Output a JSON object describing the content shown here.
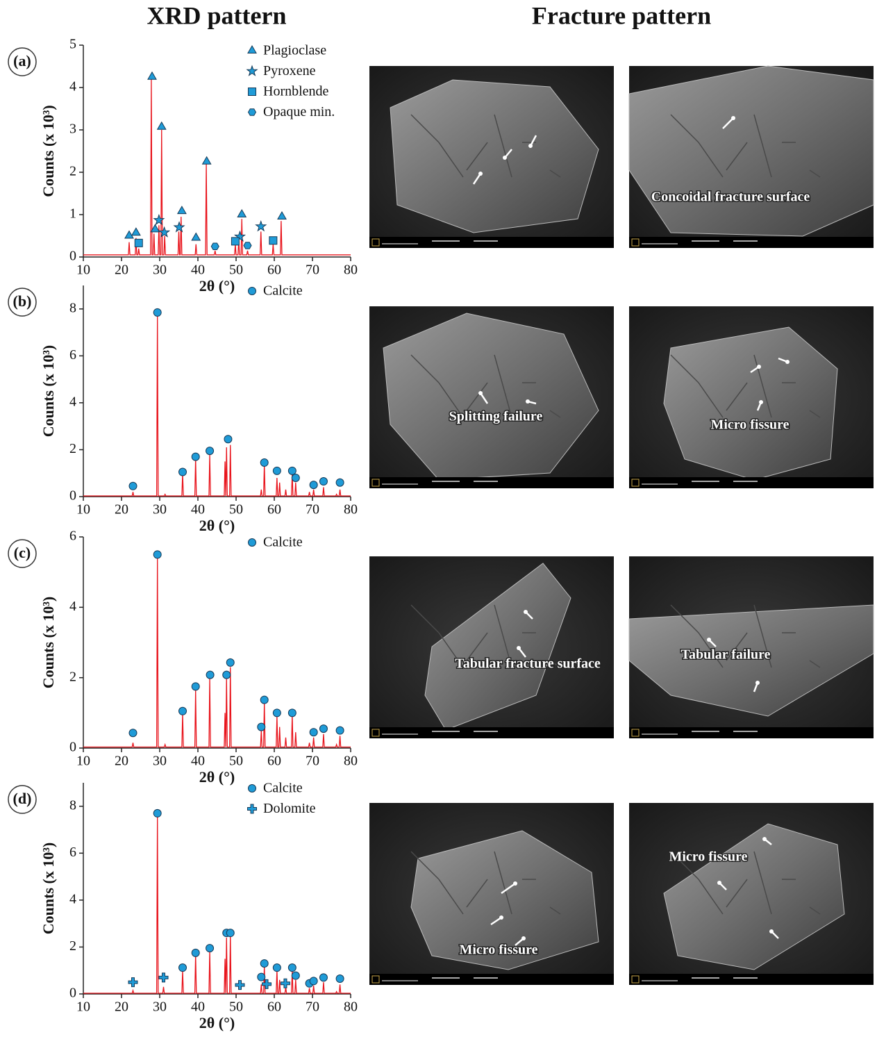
{
  "headers": [
    "XRD pattern",
    "Fracture pattern"
  ],
  "fracture_annotations": [
    "Concoidal fracture surface",
    "Splitting failure",
    "Micro fissure",
    "Tabular fracture surface",
    "Tabular failure",
    "Micro fissure",
    "Micro fissure"
  ],
  "chart_data": [
    {
      "type": "line",
      "panel_label": "(a)",
      "ylabel": "Counts (x 10³)",
      "xlabel": "2θ (°)",
      "color": "#e8141c",
      "xlim": [
        10,
        80
      ],
      "xticks": [
        10,
        20,
        30,
        40,
        50,
        60,
        70,
        80
      ],
      "ylim": [
        0,
        5
      ],
      "yticks": [
        0,
        1,
        2,
        3,
        4,
        5
      ],
      "legend": "upper right",
      "x": [
        10,
        21.8,
        22,
        22.2,
        23.6,
        23.8,
        24,
        24.3,
        24.5,
        24.7,
        27.6,
        27.8,
        28,
        28.3,
        28.5,
        28.7,
        29.6,
        29.8,
        30,
        30.3,
        30.5,
        30.7,
        31.1,
        31.3,
        31.5,
        34.8,
        35,
        35.2,
        35.4,
        35.6,
        35.8,
        39.3,
        39.5,
        39.7,
        42,
        42.2,
        42.4,
        44.3,
        44.5,
        44.7,
        49.6,
        49.8,
        50,
        50.5,
        50.7,
        50.9,
        51.3,
        51.5,
        51.7,
        52.8,
        53,
        53.2,
        56.3,
        56.5,
        56.7,
        59.5,
        59.7,
        59.9,
        61.6,
        61.8,
        62,
        80
      ],
      "values": [
        0.05,
        0.05,
        0.35,
        0.05,
        0.05,
        0.45,
        0.05,
        0.05,
        0.2,
        0.05,
        0.05,
        4.2,
        0.05,
        0.05,
        0.55,
        0.05,
        0.05,
        0.75,
        0.05,
        0.05,
        3.0,
        0.05,
        0.05,
        0.5,
        0.05,
        0.05,
        0.6,
        0.05,
        0.05,
        0.95,
        0.05,
        0.05,
        0.3,
        0.05,
        0.05,
        2.2,
        0.05,
        0.05,
        0.15,
        0.05,
        0.05,
        0.3,
        0.05,
        0.05,
        0.4,
        0.05,
        0.05,
        0.9,
        0.05,
        0.05,
        0.15,
        0.05,
        0.05,
        0.6,
        0.05,
        0.05,
        0.3,
        0.05,
        0.05,
        0.85,
        0.05,
        0.05
      ],
      "series": [
        {
          "name": "Plagioclase",
          "marker": "triangle",
          "color": "#1f9bd7",
          "x": [
            22,
            23.8,
            28,
            28.8,
            30.5,
            35.8,
            39.5,
            42.3,
            51.5,
            62
          ],
          "values": [
            0.5,
            0.57,
            4.25,
            0.65,
            3.07,
            1.08,
            0.45,
            2.25,
            1.0,
            0.95
          ]
        },
        {
          "name": "Pyroxene",
          "marker": "star",
          "color": "#1f9bd7",
          "x": [
            29.8,
            31.2,
            35.1,
            51,
            56.5
          ],
          "values": [
            0.87,
            0.58,
            0.7,
            0.48,
            0.72
          ]
        },
        {
          "name": "Hornblende",
          "marker": "square",
          "color": "#1f9bd7",
          "x": [
            24.5,
            49.8,
            59.7
          ],
          "values": [
            0.33,
            0.37,
            0.39
          ]
        },
        {
          "name": "Opaque min.",
          "marker": "hexagon",
          "color": "#1f9bd7",
          "x": [
            44.5,
            53
          ],
          "values": [
            0.25,
            0.27
          ]
        }
      ]
    },
    {
      "type": "line",
      "panel_label": "(b)",
      "ylabel": "Counts (x 10³)",
      "xlabel": "2θ (°)",
      "color": "#e8141c",
      "xlim": [
        10,
        80
      ],
      "xticks": [
        10,
        20,
        30,
        40,
        50,
        60,
        70,
        80
      ],
      "ylim": [
        0,
        9
      ],
      "yticks": [
        0,
        2,
        4,
        6,
        8
      ],
      "legend": "upper right",
      "x": [
        10,
        22.8,
        23,
        23.2,
        29.2,
        29.4,
        29.6,
        31.2,
        31.4,
        31.6,
        35.8,
        36,
        36.2,
        39.2,
        39.4,
        39.6,
        42.9,
        43.1,
        43.3,
        46.9,
        47.1,
        47.3,
        47.3,
        47.5,
        47.7,
        48.3,
        48.5,
        48.7,
        56.4,
        56.6,
        56.8,
        57.2,
        57.4,
        57.6,
        60.5,
        60.7,
        60.9,
        61.2,
        61.4,
        61.6,
        62.8,
        63,
        63.2,
        64.5,
        64.7,
        64.9,
        65.4,
        65.6,
        65.8,
        69,
        69.2,
        69.4,
        70.1,
        70.3,
        70.5,
        72.7,
        72.9,
        73.1,
        76.1,
        76.3,
        76.5,
        77,
        77.2,
        77.4,
        80
      ],
      "values": [
        0.03,
        0.03,
        0.2,
        0.03,
        0.03,
        7.7,
        0.03,
        0.03,
        0.1,
        0.03,
        0.03,
        1.0,
        0.03,
        0.03,
        1.65,
        0.03,
        0.03,
        1.8,
        0.03,
        0.03,
        1.5,
        0.03,
        0.03,
        2.1,
        0.03,
        0.03,
        2.2,
        0.03,
        0.03,
        0.3,
        0.03,
        0.03,
        1.4,
        0.03,
        0.03,
        0.8,
        0.03,
        0.03,
        0.6,
        0.03,
        0.03,
        0.3,
        0.03,
        0.03,
        1.0,
        0.03,
        0.03,
        0.6,
        0.03,
        0.03,
        0.2,
        0.03,
        0.03,
        0.3,
        0.03,
        0.03,
        0.4,
        0.03,
        0.03,
        0.1,
        0.03,
        0.03,
        0.3,
        0.03,
        0.03
      ],
      "series": [
        {
          "name": "Calcite",
          "marker": "circle",
          "color": "#1f9bd7",
          "x": [
            23,
            29.4,
            36,
            39.4,
            43.1,
            47.9,
            57.4,
            60.7,
            64.7,
            65.6,
            70.3,
            72.9,
            77.2
          ],
          "values": [
            0.45,
            7.85,
            1.05,
            1.7,
            1.95,
            2.45,
            1.45,
            1.1,
            1.1,
            0.8,
            0.5,
            0.65,
            0.6
          ]
        }
      ]
    },
    {
      "type": "line",
      "panel_label": "(c)",
      "ylabel": "Counts (x 10³)",
      "xlabel": "2θ (°)",
      "color": "#e8141c",
      "xlim": [
        10,
        80
      ],
      "xticks": [
        10,
        20,
        30,
        40,
        50,
        60,
        70,
        80
      ],
      "ylim": [
        0,
        6
      ],
      "yticks": [
        0,
        2,
        4,
        6
      ],
      "legend": "upper right",
      "x": [
        10,
        22.8,
        23,
        23.2,
        29.2,
        29.4,
        29.6,
        31.2,
        31.4,
        31.6,
        35.8,
        36,
        36.2,
        39.2,
        39.4,
        39.6,
        42.9,
        43.1,
        43.3,
        46.9,
        47.1,
        47.3,
        47.3,
        47.5,
        47.7,
        48.3,
        48.5,
        48.7,
        56.4,
        56.6,
        56.8,
        57.2,
        57.4,
        57.6,
        60.5,
        60.7,
        60.9,
        61.2,
        61.4,
        61.6,
        62.8,
        63,
        63.2,
        64.5,
        64.7,
        64.9,
        65.4,
        65.6,
        65.8,
        69,
        69.2,
        69.4,
        70.1,
        70.3,
        70.5,
        72.7,
        72.9,
        73.1,
        76.1,
        76.3,
        76.5,
        77,
        77.2,
        77.4,
        80
      ],
      "values": [
        0.03,
        0.03,
        0.15,
        0.03,
        0.03,
        5.4,
        0.03,
        0.03,
        0.1,
        0.03,
        0.03,
        1.0,
        0.03,
        0.03,
        1.65,
        0.03,
        0.03,
        2.0,
        0.03,
        0.03,
        1.0,
        0.03,
        0.03,
        2.0,
        0.03,
        0.03,
        2.3,
        0.03,
        0.03,
        0.5,
        0.03,
        0.03,
        1.3,
        0.03,
        0.03,
        0.9,
        0.03,
        0.03,
        0.6,
        0.03,
        0.03,
        0.3,
        0.03,
        0.03,
        0.95,
        0.03,
        0.03,
        0.45,
        0.03,
        0.03,
        0.15,
        0.03,
        0.03,
        0.3,
        0.03,
        0.03,
        0.4,
        0.03,
        0.03,
        0.1,
        0.03,
        0.03,
        0.35,
        0.03,
        0.03
      ],
      "series": [
        {
          "name": "Calcite",
          "marker": "circle",
          "color": "#1f9bd7",
          "x": [
            23,
            29.4,
            36,
            39.4,
            43.2,
            47.5,
            48.5,
            56.6,
            57.4,
            60.7,
            64.7,
            70.3,
            72.9,
            77.2
          ],
          "values": [
            0.43,
            5.5,
            1.05,
            1.75,
            2.08,
            2.08,
            2.43,
            0.6,
            1.37,
            1.0,
            1.0,
            0.45,
            0.55,
            0.5
          ]
        }
      ]
    },
    {
      "type": "line",
      "panel_label": "(d)",
      "ylabel": "Counts (x 10³)",
      "xlabel": "2θ (°)",
      "color": "#e8141c",
      "xlim": [
        10,
        80
      ],
      "xticks": [
        10,
        20,
        30,
        40,
        50,
        60,
        70,
        80
      ],
      "ylim": [
        0,
        9
      ],
      "yticks": [
        0,
        2,
        4,
        6,
        8
      ],
      "legend": "upper right",
      "x": [
        10,
        22.8,
        23,
        23.2,
        29.2,
        29.4,
        29.6,
        30.8,
        31,
        31.2,
        35.8,
        36,
        36.2,
        39.2,
        39.4,
        39.6,
        42.9,
        43.1,
        43.3,
        46.9,
        47.1,
        47.3,
        47.3,
        47.5,
        47.7,
        48.3,
        48.5,
        48.7,
        56.4,
        56.6,
        56.8,
        57.2,
        57.4,
        57.6,
        60.5,
        60.7,
        60.9,
        61.2,
        61.4,
        61.6,
        62.8,
        63,
        63.2,
        64.5,
        64.7,
        64.9,
        65.4,
        65.6,
        65.8,
        69,
        69.2,
        69.4,
        70.1,
        70.3,
        70.5,
        72.7,
        72.9,
        73.1,
        76.1,
        76.3,
        76.5,
        77,
        77.2,
        77.4,
        80
      ],
      "values": [
        0.03,
        0.03,
        0.15,
        0.03,
        0.03,
        7.6,
        0.03,
        0.03,
        0.3,
        0.03,
        0.03,
        1.0,
        0.03,
        0.03,
        1.7,
        0.03,
        0.03,
        1.85,
        0.03,
        0.03,
        1.5,
        0.03,
        0.03,
        2.4,
        0.03,
        0.03,
        2.5,
        0.03,
        0.03,
        0.4,
        0.03,
        0.03,
        1.2,
        0.03,
        0.03,
        1.0,
        0.03,
        0.03,
        0.6,
        0.03,
        0.03,
        0.3,
        0.03,
        0.03,
        1.0,
        0.03,
        0.03,
        0.6,
        0.03,
        0.03,
        0.25,
        0.03,
        0.03,
        0.35,
        0.03,
        0.03,
        0.5,
        0.03,
        0.03,
        0.1,
        0.03,
        0.03,
        0.4,
        0.03,
        0.03
      ],
      "series": [
        {
          "name": "Calcite",
          "marker": "circle",
          "color": "#1f9bd7",
          "x": [
            29.4,
            36,
            39.4,
            43.1,
            47.5,
            48.5,
            56.6,
            57.4,
            60.7,
            64.7,
            65.6,
            69.2,
            70.3,
            72.9,
            77.2
          ],
          "values": [
            7.7,
            1.12,
            1.75,
            1.95,
            2.6,
            2.6,
            0.72,
            1.3,
            1.12,
            1.12,
            0.78,
            0.45,
            0.55,
            0.7,
            0.65
          ]
        },
        {
          "name": "Dolomite",
          "marker": "plus",
          "color": "#1f9bd7",
          "x": [
            23,
            31,
            51,
            58,
            62.9
          ],
          "values": [
            0.5,
            0.7,
            0.38,
            0.42,
            0.45
          ]
        }
      ]
    }
  ]
}
